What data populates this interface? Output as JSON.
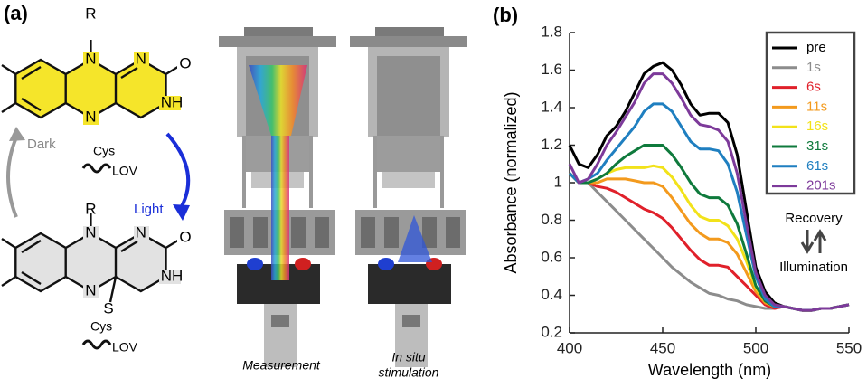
{
  "panel_a": {
    "label": "(a)",
    "top_atoms": [
      "R",
      "N",
      "N",
      "O",
      "N",
      "NH"
    ],
    "bottom_atoms": [
      "R",
      "N",
      "N",
      "O",
      "N",
      "NH",
      "S",
      "Cys",
      "LOV"
    ],
    "middle": {
      "cys": "Cys",
      "lov": "LOV",
      "dark": "Dark",
      "light": "Light"
    },
    "captions": {
      "measurement": "Measurement",
      "stimulation": [
        "In situ",
        "stimulation"
      ]
    }
  },
  "chart_data": {
    "type": "line",
    "panel_label": "(b)",
    "xlabel": "Wavelength (nm)",
    "ylabel": "Absorbance (normalized)",
    "x": [
      400,
      405,
      410,
      415,
      420,
      425,
      430,
      435,
      440,
      445,
      450,
      455,
      460,
      465,
      470,
      475,
      480,
      485,
      490,
      495,
      500,
      505,
      510,
      515,
      520,
      525,
      530,
      535,
      540,
      545,
      550
    ],
    "series": [
      {
        "name": "pre",
        "color": "#000000",
        "values": [
          1.2,
          1.1,
          1.08,
          1.15,
          1.25,
          1.3,
          1.38,
          1.48,
          1.58,
          1.62,
          1.64,
          1.6,
          1.52,
          1.42,
          1.36,
          1.37,
          1.37,
          1.32,
          1.15,
          0.85,
          0.55,
          0.42,
          0.36,
          0.34,
          0.33,
          0.32,
          0.32,
          0.33,
          0.33,
          0.34,
          0.35
        ]
      },
      {
        "name": "1s",
        "color": "#8c8c8c",
        "values": [
          1.05,
          1.0,
          1.0,
          0.95,
          0.9,
          0.85,
          0.8,
          0.75,
          0.7,
          0.65,
          0.6,
          0.55,
          0.51,
          0.47,
          0.44,
          0.41,
          0.4,
          0.38,
          0.37,
          0.35,
          0.34,
          0.33,
          0.33,
          0.34,
          0.33,
          0.32,
          0.32,
          0.33,
          0.33,
          0.34,
          0.35
        ]
      },
      {
        "name": "6s",
        "color": "#e0202a",
        "values": [
          1.05,
          1.0,
          1.0,
          0.98,
          0.97,
          0.95,
          0.92,
          0.89,
          0.86,
          0.84,
          0.81,
          0.76,
          0.7,
          0.64,
          0.59,
          0.56,
          0.56,
          0.55,
          0.5,
          0.45,
          0.4,
          0.35,
          0.33,
          0.34,
          0.33,
          0.32,
          0.32,
          0.33,
          0.33,
          0.34,
          0.35
        ]
      },
      {
        "name": "11s",
        "color": "#f39a1d",
        "values": [
          1.05,
          1.0,
          1.0,
          1.0,
          1.02,
          1.02,
          1.02,
          1.01,
          1.0,
          1.0,
          0.98,
          0.92,
          0.85,
          0.78,
          0.73,
          0.7,
          0.7,
          0.68,
          0.62,
          0.52,
          0.42,
          0.36,
          0.34,
          0.34,
          0.33,
          0.32,
          0.32,
          0.33,
          0.33,
          0.34,
          0.35
        ]
      },
      {
        "name": "16s",
        "color": "#f2e21a",
        "values": [
          1.05,
          1.0,
          1.0,
          1.02,
          1.05,
          1.07,
          1.08,
          1.08,
          1.08,
          1.09,
          1.08,
          1.03,
          0.96,
          0.88,
          0.82,
          0.8,
          0.8,
          0.77,
          0.7,
          0.58,
          0.44,
          0.37,
          0.34,
          0.34,
          0.33,
          0.32,
          0.32,
          0.33,
          0.33,
          0.34,
          0.35
        ]
      },
      {
        "name": "31s",
        "color": "#0f7a3c",
        "values": [
          1.05,
          1.0,
          1.0,
          1.02,
          1.05,
          1.1,
          1.14,
          1.17,
          1.2,
          1.2,
          1.2,
          1.15,
          1.08,
          1.0,
          0.94,
          0.92,
          0.92,
          0.88,
          0.78,
          0.62,
          0.45,
          0.37,
          0.34,
          0.34,
          0.33,
          0.32,
          0.32,
          0.33,
          0.33,
          0.34,
          0.35
        ]
      },
      {
        "name": "61s",
        "color": "#1f7fc0",
        "values": [
          1.05,
          1.0,
          1.02,
          1.05,
          1.12,
          1.18,
          1.24,
          1.3,
          1.38,
          1.42,
          1.42,
          1.38,
          1.3,
          1.22,
          1.18,
          1.18,
          1.17,
          1.1,
          0.95,
          0.72,
          0.5,
          0.38,
          0.34,
          0.34,
          0.33,
          0.32,
          0.32,
          0.33,
          0.33,
          0.34,
          0.35
        ]
      },
      {
        "name": "201s",
        "color": "#7d3a9a",
        "values": [
          1.1,
          1.0,
          1.02,
          1.1,
          1.2,
          1.27,
          1.35,
          1.43,
          1.53,
          1.58,
          1.58,
          1.53,
          1.45,
          1.36,
          1.31,
          1.3,
          1.28,
          1.22,
          1.05,
          0.78,
          0.52,
          0.4,
          0.35,
          0.34,
          0.33,
          0.32,
          0.32,
          0.33,
          0.33,
          0.34,
          0.35
        ]
      }
    ],
    "xlim": [
      400,
      550
    ],
    "ylim": [
      0.2,
      1.8
    ],
    "xticks": [
      400,
      450,
      500,
      550
    ],
    "yticks": [
      0.2,
      0.4,
      0.6,
      0.8,
      1,
      1.2,
      1.4,
      1.6,
      1.8
    ],
    "legend": "upper right",
    "annotations": [
      "Recovery",
      "Illumination"
    ]
  }
}
